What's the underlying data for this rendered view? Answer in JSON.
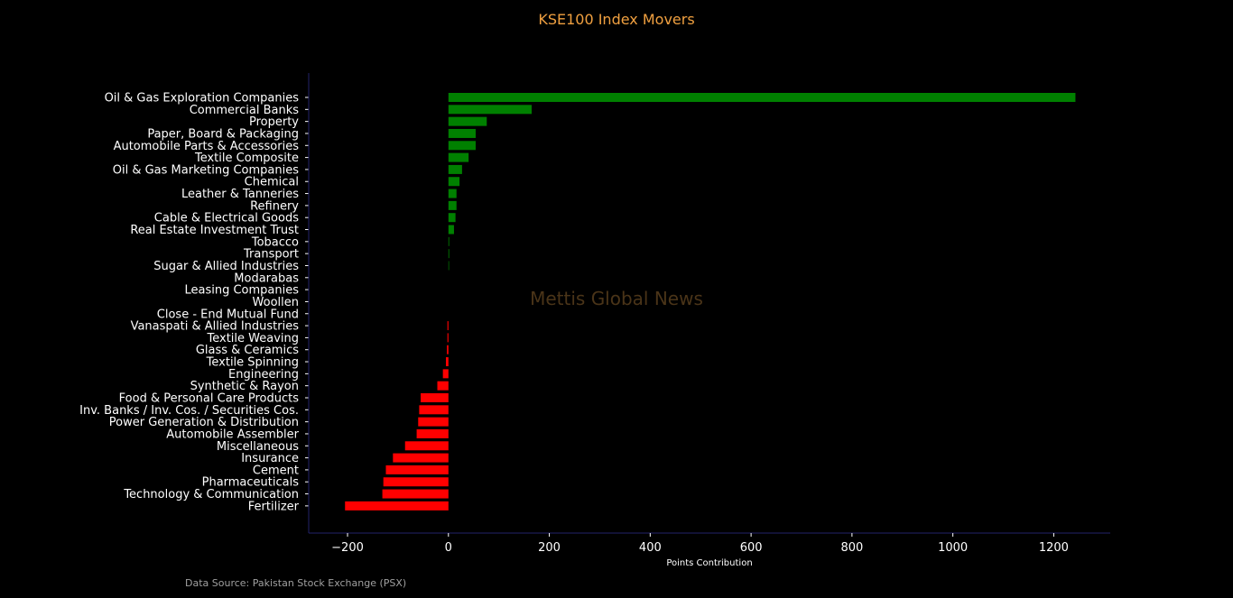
{
  "chart_data": {
    "type": "bar",
    "orientation": "horizontal",
    "title": "KSE100 Index Movers",
    "xlabel": "Points Contribution",
    "ylabel": "",
    "xlim": [
      -277,
      1312
    ],
    "xticks": [
      -200,
      0,
      200,
      400,
      600,
      800,
      1000,
      1200
    ],
    "xtick_labels": [
      "−200",
      "0",
      "200",
      "400",
      "600",
      "800",
      "1000",
      "1200"
    ],
    "grid": false,
    "categories": [
      "Oil & Gas Exploration Companies",
      "Commercial Banks",
      "Property",
      "Paper, Board & Packaging",
      "Automobile Parts & Accessories",
      "Textile Composite",
      "Oil & Gas Marketing Companies",
      "Chemical",
      "Leather & Tanneries",
      "Refinery",
      "Cable & Electrical Goods",
      "Real Estate Investment Trust",
      "Tobacco",
      "Transport",
      "Sugar & Allied Industries",
      "Modarabas",
      "Leasing Companies",
      "Woollen",
      "Close - End Mutual Fund",
      "Vanaspati & Allied Industries",
      "Textile Weaving",
      "Glass & Ceramics",
      "Textile Spinning",
      "Engineering",
      "Synthetic & Rayon",
      "Food & Personal Care Products",
      "Inv. Banks / Inv. Cos. / Securities Cos.",
      "Power Generation & Distribution",
      "Automobile Assembler",
      "Miscellaneous",
      "Insurance",
      "Cement",
      "Pharmaceuticals",
      "Technology & Communication",
      "Fertilizer"
    ],
    "values": [
      1243,
      165,
      76,
      54,
      54,
      40,
      27,
      22,
      16,
      16,
      14,
      11,
      1.5,
      1.5,
      1.2,
      0,
      0,
      0,
      0,
      -2,
      -2,
      -3,
      -5,
      -11,
      -22,
      -55,
      -58,
      -60,
      -63,
      -86,
      -110,
      -124,
      -129,
      -131,
      -205
    ],
    "positive_color": "#008000",
    "negative_color": "#ff0000",
    "axis_color": "#22226a",
    "title_color": "#f0a040"
  },
  "watermark": "Mettis Global News",
  "source": "Data Source: Pakistan Stock Exchange (PSX)"
}
